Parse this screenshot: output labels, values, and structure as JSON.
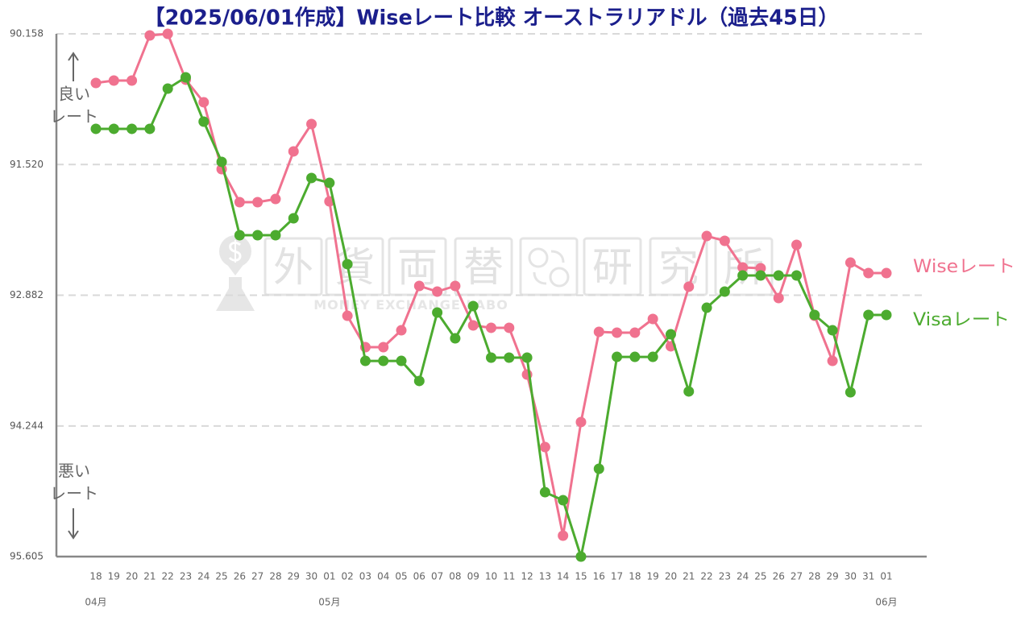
{
  "chart_data": {
    "type": "line",
    "title": "【2025/06/01作成】Wiseレート比較 オーストラリアドル（過去45日）",
    "xlabel": "",
    "ylabel": "",
    "x": [
      "18",
      "19",
      "20",
      "21",
      "22",
      "23",
      "24",
      "25",
      "26",
      "27",
      "28",
      "29",
      "30",
      "01",
      "02",
      "03",
      "04",
      "05",
      "06",
      "07",
      "08",
      "09",
      "10",
      "11",
      "12",
      "13",
      "14",
      "15",
      "16",
      "17",
      "18",
      "19",
      "20",
      "21",
      "22",
      "23",
      "24",
      "25",
      "26",
      "27",
      "28",
      "29",
      "30",
      "31",
      "01"
    ],
    "month_markers": [
      {
        "label": "04月",
        "index": 0
      },
      {
        "label": "05月",
        "index": 13
      },
      {
        "label": "06月",
        "index": 44
      }
    ],
    "yticks": [
      "90.158",
      "91.520",
      "92.882",
      "94.244",
      "95.605"
    ],
    "ylim": [
      90.158,
      95.605
    ],
    "y_axis_inverted": true,
    "grid": "horizontal dashed",
    "legend_placement": "right, at line ends",
    "annotations": {
      "better": [
        "良い",
        "レート"
      ],
      "worse": [
        "悪い",
        "レート"
      ]
    },
    "series": [
      {
        "name": "Wiseレート",
        "color": "#f0728f",
        "values": [
          90.67,
          90.645,
          90.645,
          90.175,
          90.158,
          90.636,
          90.871,
          91.568,
          91.912,
          91.912,
          91.879,
          91.383,
          91.098,
          91.904,
          93.096,
          93.423,
          93.423,
          93.247,
          92.785,
          92.844,
          92.785,
          93.196,
          93.221,
          93.221,
          93.708,
          94.464,
          95.387,
          94.203,
          93.263,
          93.272,
          93.272,
          93.129,
          93.414,
          92.793,
          92.265,
          92.315,
          92.592,
          92.6,
          92.911,
          92.357,
          93.096,
          93.566,
          92.542,
          92.651,
          92.651
        ]
      },
      {
        "name": "Visaレート",
        "color": "#4cab2f",
        "values": [
          91.148,
          91.148,
          91.148,
          91.148,
          90.729,
          90.611,
          91.073,
          91.492,
          92.256,
          92.256,
          92.256,
          92.08,
          91.66,
          91.711,
          92.558,
          93.566,
          93.566,
          93.566,
          93.775,
          93.062,
          93.331,
          92.995,
          93.532,
          93.532,
          93.532,
          94.934,
          95.018,
          95.605,
          94.69,
          93.524,
          93.524,
          93.524,
          93.289,
          93.884,
          93.012,
          92.844,
          92.676,
          92.676,
          92.676,
          92.676,
          93.087,
          93.247,
          93.893,
          93.087,
          93.087
        ]
      }
    ]
  },
  "watermark": {
    "chars": [
      "外",
      "貨",
      "両",
      "替",
      "研",
      "究",
      "所"
    ],
    "subtitle": "MONEY EXCHANGE LABO",
    "icons": [
      "dollar-pin-icon",
      "flask-icon",
      "currency-exchange-icon"
    ]
  }
}
